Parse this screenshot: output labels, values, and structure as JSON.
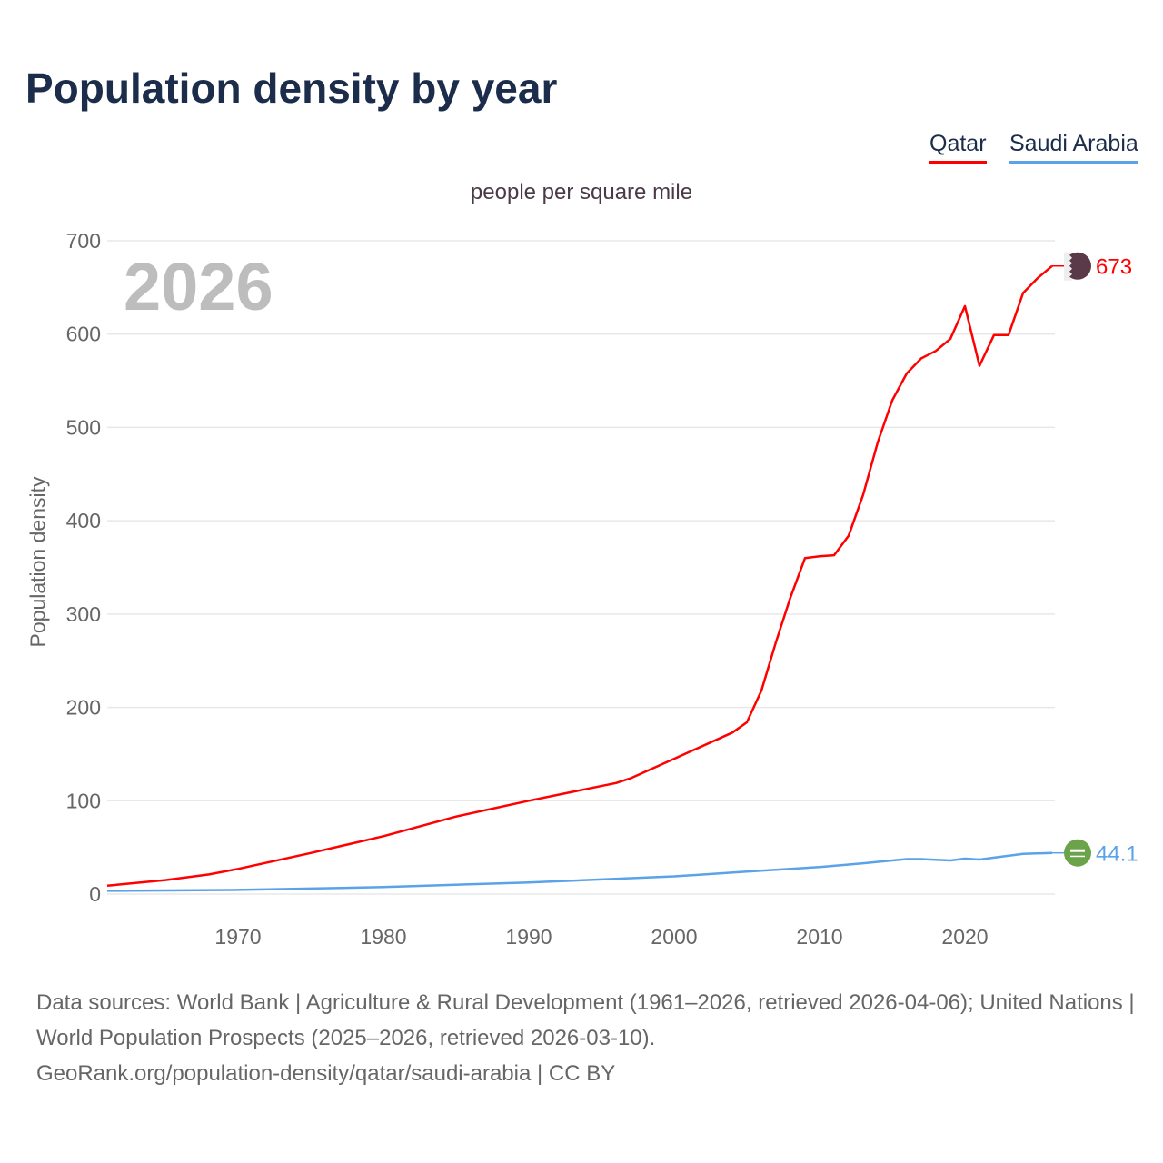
{
  "title": "Population density by year",
  "legend": [
    {
      "label": "Qatar",
      "color": "#ff0000"
    },
    {
      "label": "Saudi Arabia",
      "color": "#5ba3e8"
    }
  ],
  "subtitle": "people per square mile",
  "year_watermark": "2026",
  "source_lines": [
    "Data sources: World Bank | Agriculture & Rural Development (1961–2026, retrieved 2026-04-06); United Nations | World Population Prospects (2025–2026, retrieved 2026-03-10).",
    "GeoRank.org/population-density/qatar/saudi-arabia | CC BY"
  ],
  "chart_data": {
    "type": "line",
    "title": "Population density by year",
    "xlabel": "",
    "ylabel": "Population density",
    "xlim": [
      1961,
      2026
    ],
    "ylim": [
      0,
      700
    ],
    "x_ticks": [
      1970,
      1980,
      1990,
      2000,
      2010,
      2020
    ],
    "y_ticks": [
      0,
      100,
      200,
      300,
      400,
      500,
      600,
      700
    ],
    "grid": true,
    "legend_position": "top-right",
    "series": [
      {
        "name": "Qatar",
        "color": "#ff0000",
        "end_label": "673",
        "flag": "qatar-flag",
        "points": [
          [
            1961,
            9
          ],
          [
            1965,
            15
          ],
          [
            1968,
            21
          ],
          [
            1970,
            27
          ],
          [
            1975,
            44
          ],
          [
            1980,
            62
          ],
          [
            1985,
            83
          ],
          [
            1990,
            100
          ],
          [
            1996,
            119
          ],
          [
            1997,
            124
          ],
          [
            2000,
            145
          ],
          [
            2004,
            173
          ],
          [
            2005,
            184
          ],
          [
            2006,
            218
          ],
          [
            2007,
            270
          ],
          [
            2008,
            318
          ],
          [
            2009,
            360
          ],
          [
            2010,
            362
          ],
          [
            2011,
            363
          ],
          [
            2012,
            384
          ],
          [
            2013,
            428
          ],
          [
            2014,
            484
          ],
          [
            2015,
            529
          ],
          [
            2016,
            558
          ],
          [
            2017,
            574
          ],
          [
            2018,
            582
          ],
          [
            2019,
            595
          ],
          [
            2020,
            630
          ],
          [
            2021,
            566
          ],
          [
            2022,
            599
          ],
          [
            2023,
            599
          ],
          [
            2024,
            644
          ],
          [
            2025,
            660
          ],
          [
            2026,
            673
          ]
        ]
      },
      {
        "name": "Saudi Arabia",
        "color": "#5ba3e8",
        "end_label": "44.1",
        "flag": "saudi-arabia-flag",
        "points": [
          [
            1961,
            3.5
          ],
          [
            1970,
            4.5
          ],
          [
            1980,
            7.5
          ],
          [
            1990,
            12.5
          ],
          [
            2000,
            19
          ],
          [
            2005,
            24
          ],
          [
            2010,
            29
          ],
          [
            2013,
            33
          ],
          [
            2015,
            36
          ],
          [
            2016,
            37.5
          ],
          [
            2017,
            37.5
          ],
          [
            2019,
            36
          ],
          [
            2020,
            38
          ],
          [
            2021,
            37
          ],
          [
            2022,
            39
          ],
          [
            2024,
            43
          ],
          [
            2026,
            44.1
          ]
        ]
      }
    ]
  }
}
